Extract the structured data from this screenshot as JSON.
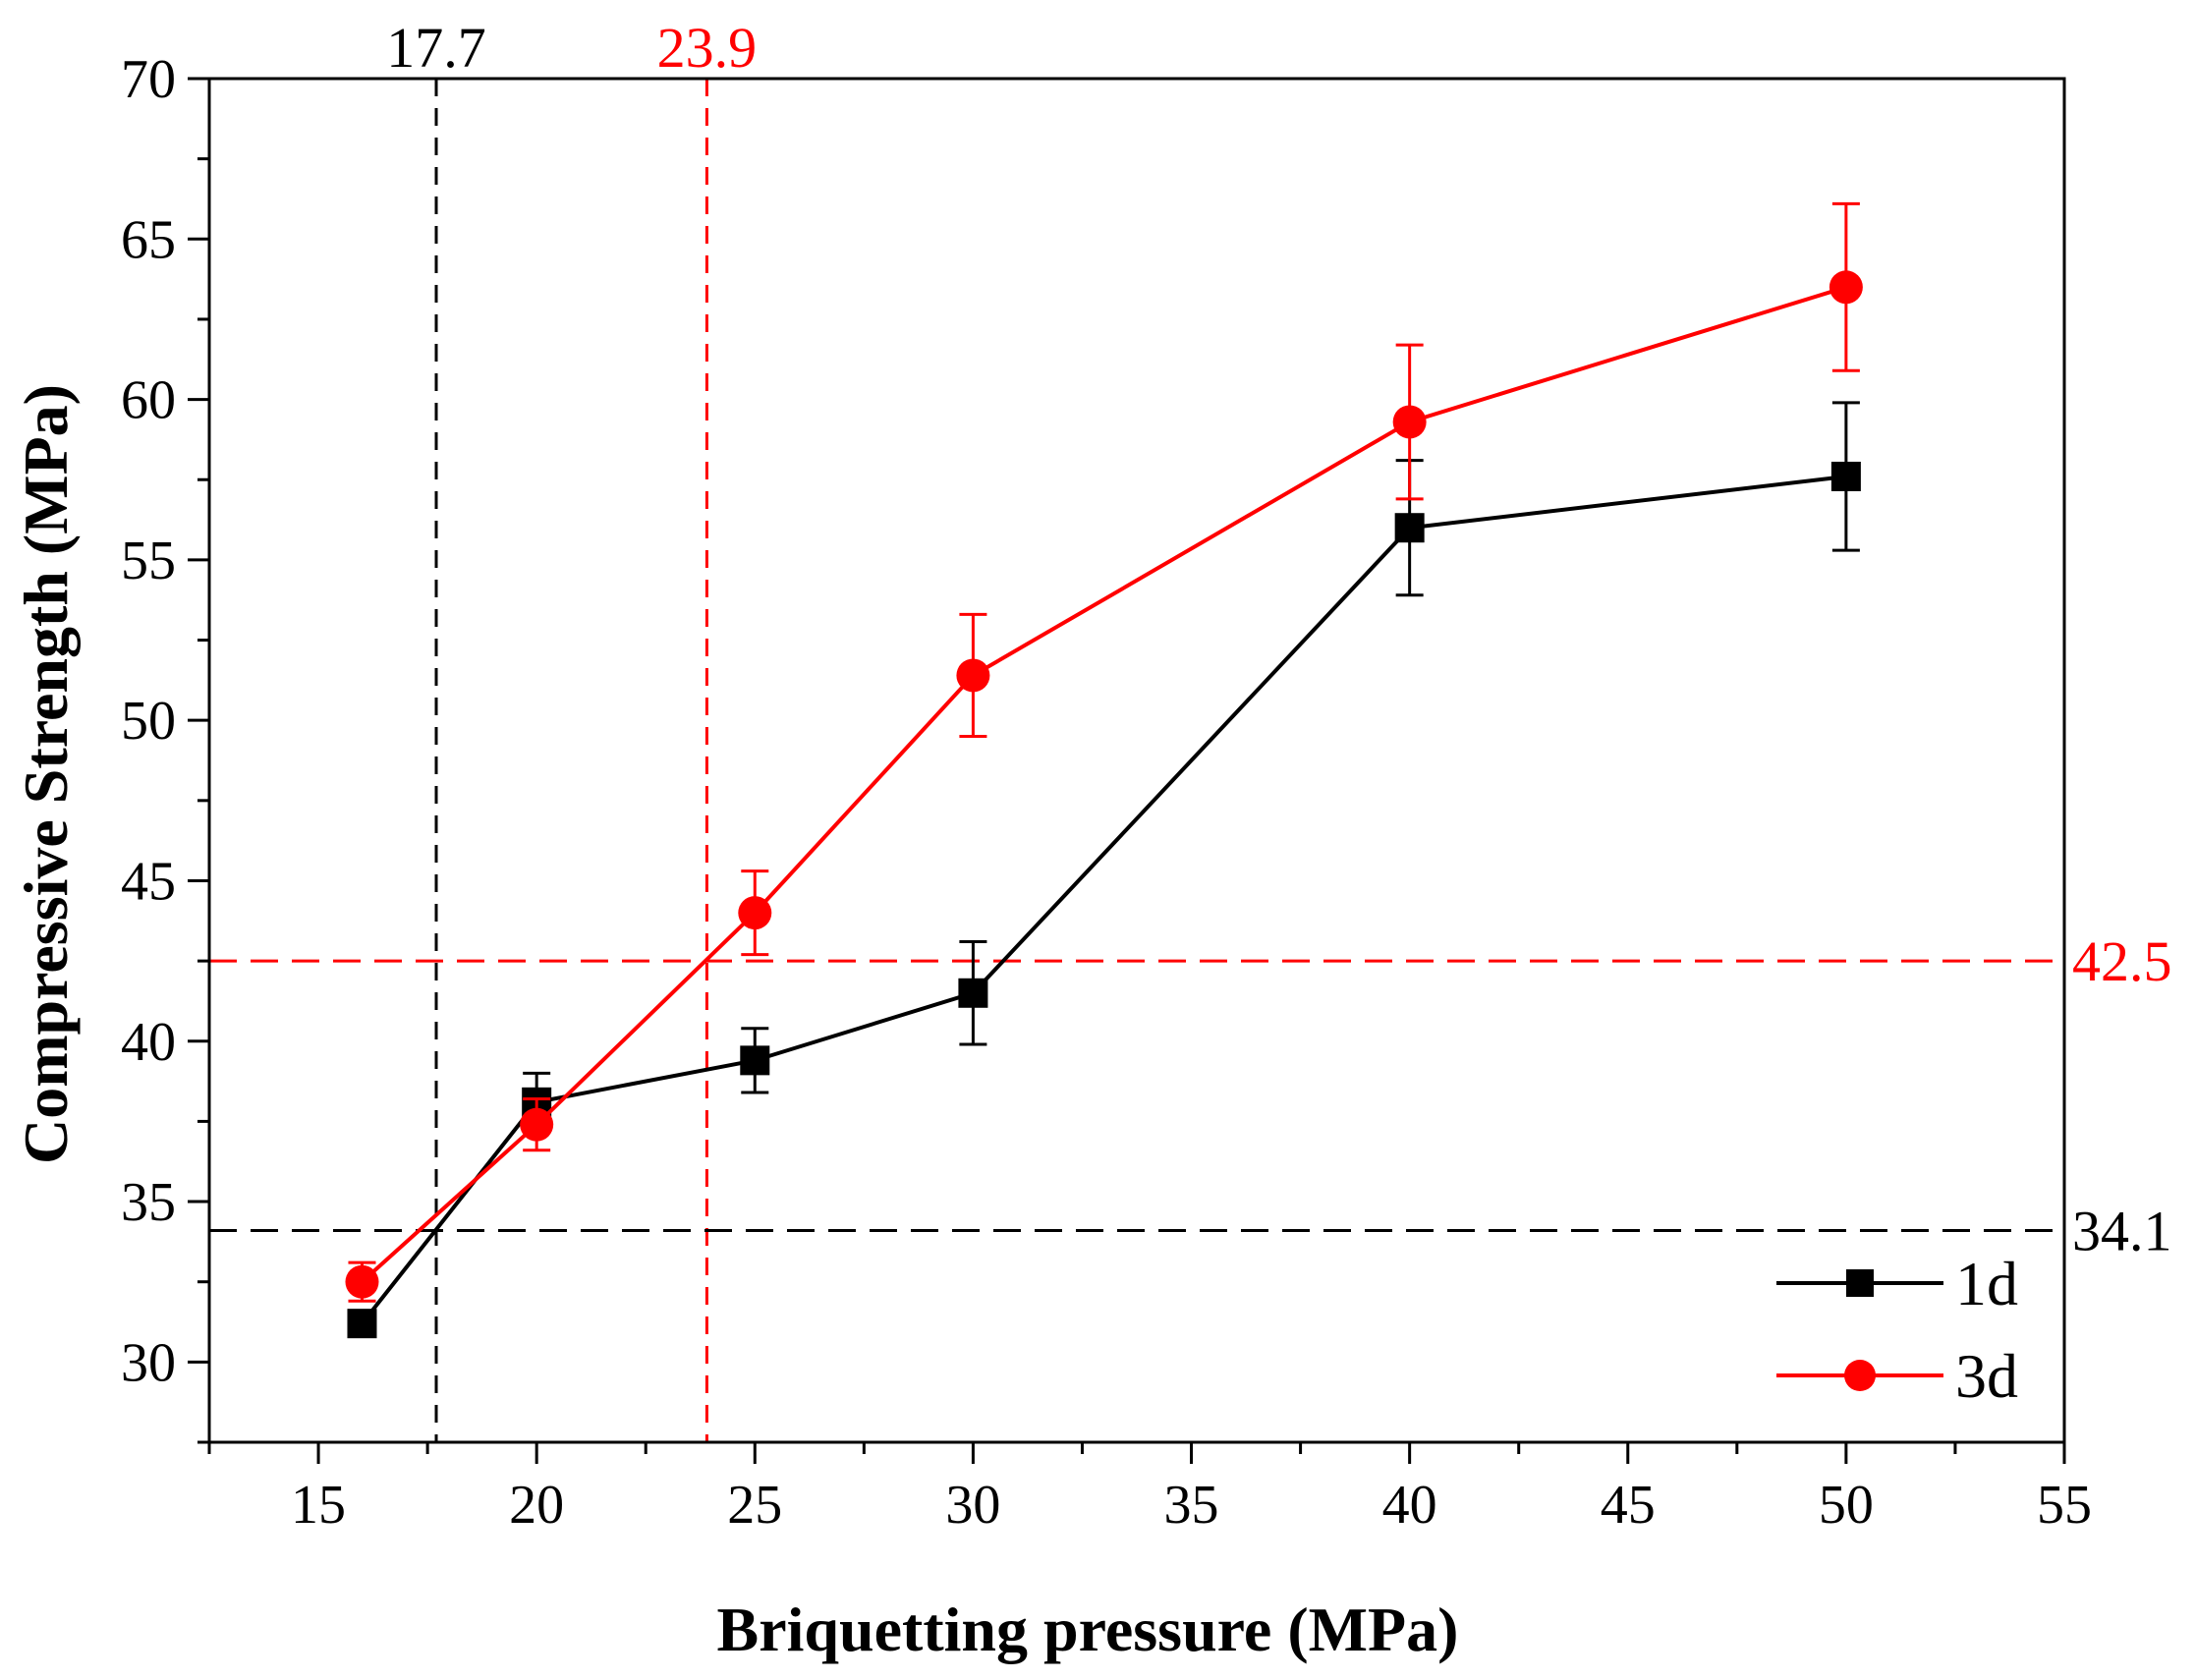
{
  "chart_data": {
    "type": "line",
    "title": "",
    "xlabel": "Briquetting pressure (MPa)",
    "ylabel": "Compressive Strength (MPa)",
    "xlim": [
      12.5,
      55
    ],
    "ylim": [
      27.5,
      70
    ],
    "x_ticks": [
      15,
      20,
      25,
      30,
      35,
      40,
      45,
      50,
      55
    ],
    "x_tick_labels": [
      "15",
      "20",
      "25",
      "30",
      "35",
      "40",
      "45",
      "50",
      "55"
    ],
    "y_ticks": [
      30,
      35,
      40,
      45,
      50,
      55,
      60,
      65,
      70
    ],
    "y_tick_labels": [
      "30",
      "35",
      "40",
      "45",
      "50",
      "55",
      "60",
      "65",
      "70"
    ],
    "grid": false,
    "legend_position": "bottom-right",
    "series": [
      {
        "name": "1d",
        "color": "#000000",
        "marker": "square",
        "x": [
          16,
          20,
          25,
          30,
          40,
          50
        ],
        "y": [
          31.2,
          38.1,
          39.4,
          41.5,
          56.0,
          57.6
        ],
        "error": [
          0.4,
          0.9,
          1.0,
          1.6,
          2.1,
          2.3
        ]
      },
      {
        "name": "3d",
        "color": "#ff0000",
        "marker": "circle",
        "x": [
          16,
          20,
          25,
          30,
          40,
          50
        ],
        "y": [
          32.5,
          37.4,
          44.0,
          51.4,
          59.3,
          63.5
        ],
        "error": [
          0.6,
          0.8,
          1.3,
          1.9,
          2.4,
          2.6
        ]
      }
    ],
    "reference_lines": [
      {
        "orientation": "vertical",
        "value": 17.7,
        "label": "17.7",
        "color": "#000000",
        "label_side": "top"
      },
      {
        "orientation": "vertical",
        "value": 23.9,
        "label": "23.9",
        "color": "#ff0000",
        "label_side": "top"
      },
      {
        "orientation": "horizontal",
        "value": 42.5,
        "label": "42.5",
        "color": "#ff0000",
        "label_side": "right"
      },
      {
        "orientation": "horizontal",
        "value": 34.1,
        "label": "34.1",
        "color": "#000000",
        "label_side": "right"
      }
    ]
  }
}
